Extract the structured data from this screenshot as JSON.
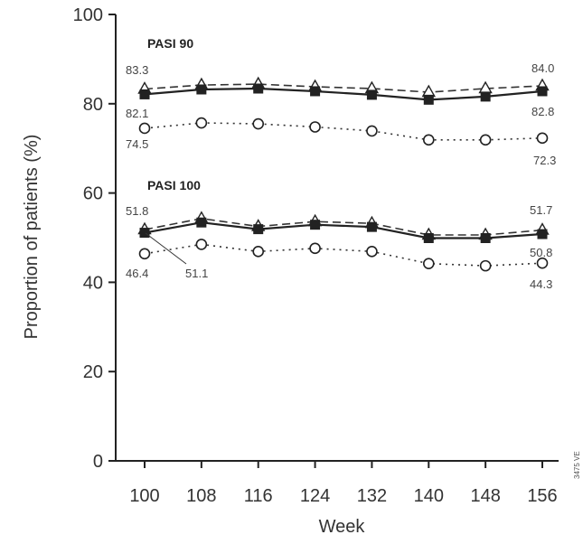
{
  "chart_data": {
    "type": "line",
    "xlabel": "Week",
    "ylabel": "Proportion of patients (%)",
    "xlim": [
      100,
      156
    ],
    "ylim": [
      0,
      100
    ],
    "x": [
      100,
      108,
      116,
      124,
      132,
      140,
      148,
      156
    ],
    "x_tick_labels": [
      "100",
      "108",
      "116",
      "124",
      "132",
      "140",
      "148",
      "156"
    ],
    "y_ticks": [
      0,
      20,
      40,
      60,
      80,
      100
    ],
    "y_tick_labels": [
      "0",
      "20",
      "40",
      "60",
      "80",
      "100"
    ],
    "grid": false,
    "legend": "none",
    "groups": [
      {
        "label": "PASI 90",
        "series": [
          {
            "style": "dashed",
            "marker": "open-triangle",
            "values": [
              83.3,
              84.2,
              84.4,
              83.8,
              83.4,
              82.6,
              83.4,
              84.0
            ]
          },
          {
            "style": "solid",
            "marker": "filled-square",
            "values": [
              82.1,
              83.2,
              83.4,
              82.8,
              82.0,
              80.9,
              81.6,
              82.8
            ]
          },
          {
            "style": "dotted",
            "marker": "open-circle",
            "values": [
              74.5,
              75.7,
              75.5,
              74.8,
              73.9,
              71.9,
              71.9,
              72.3
            ]
          }
        ]
      },
      {
        "label": "PASI 100",
        "series": [
          {
            "style": "dashed",
            "marker": "open-triangle",
            "values": [
              51.8,
              54.3,
              52.5,
              53.6,
              53.2,
              50.6,
              50.6,
              51.7
            ]
          },
          {
            "style": "solid",
            "marker": "filled-square",
            "values": [
              51.1,
              53.4,
              51.9,
              52.9,
              52.4,
              49.9,
              49.9,
              50.8
            ]
          },
          {
            "style": "dotted",
            "marker": "open-circle",
            "values": [
              46.4,
              48.5,
              46.9,
              47.6,
              46.9,
              44.2,
              43.7,
              44.3
            ]
          }
        ]
      }
    ],
    "annotations": [
      "83.3",
      "82.1",
      "74.5",
      "84.0",
      "82.8",
      "72.3",
      "51.8",
      "46.4",
      "51.1",
      "51.7",
      "50.8",
      "44.3"
    ],
    "side_code": "3475 VE"
  }
}
